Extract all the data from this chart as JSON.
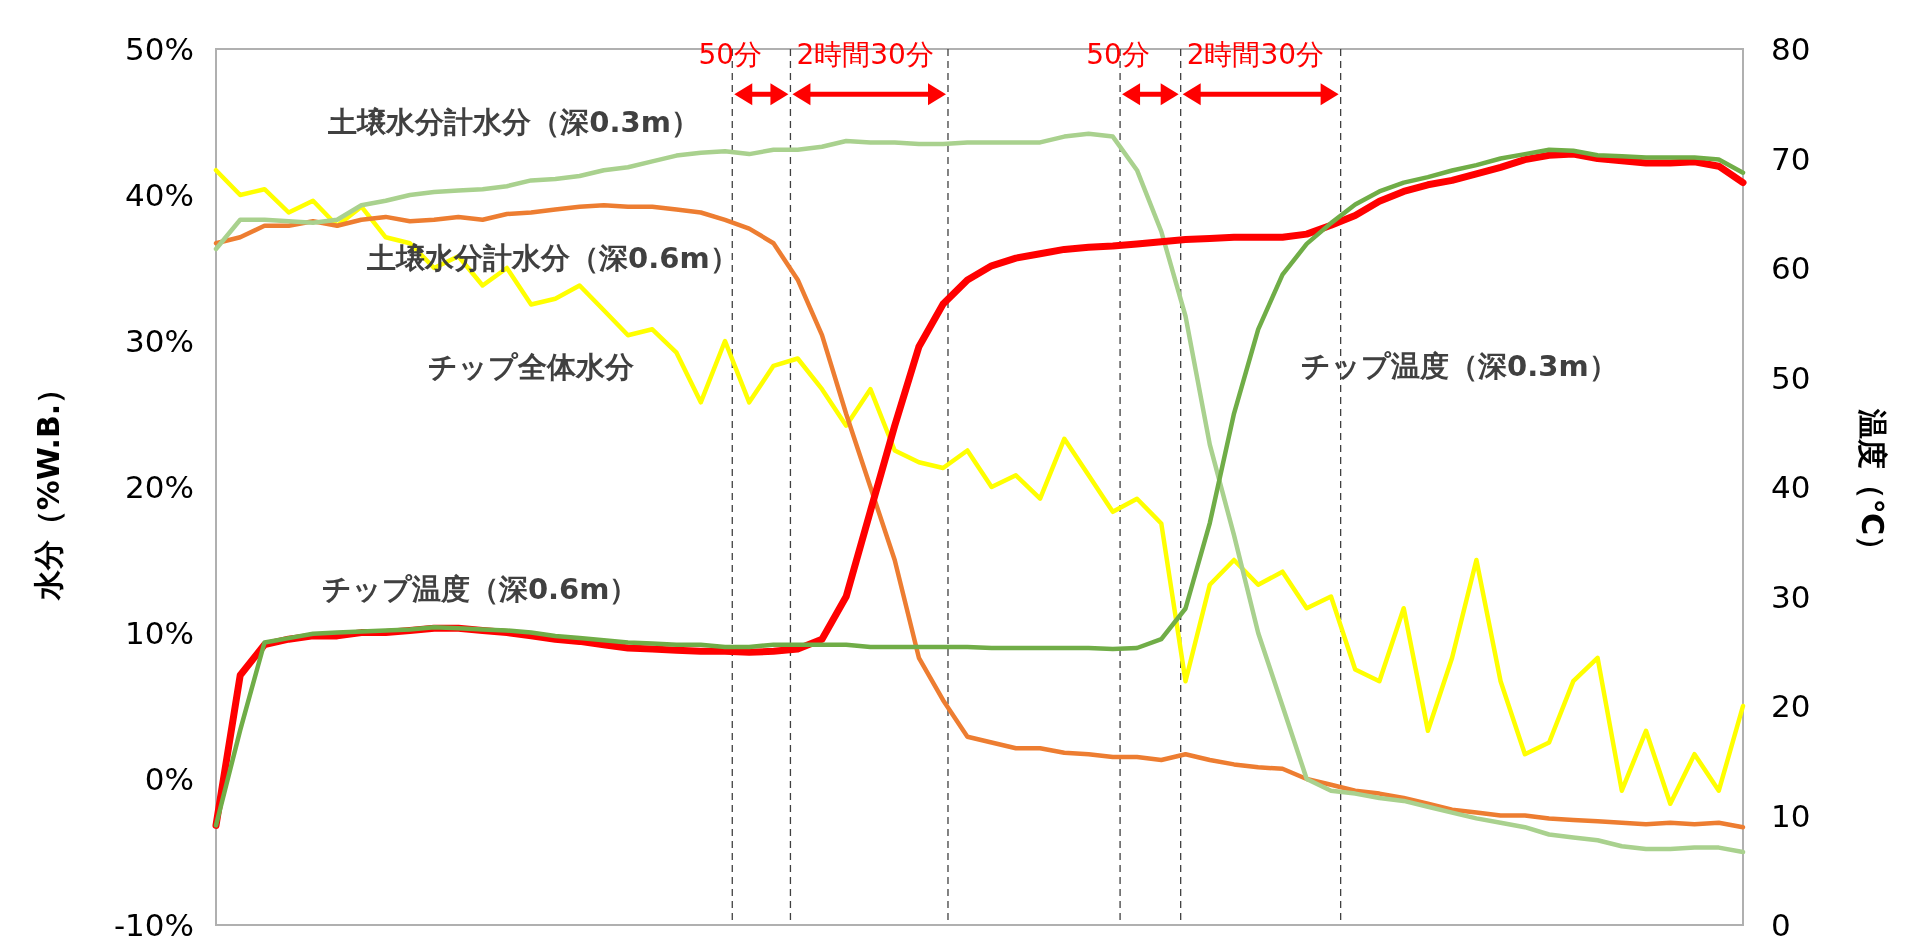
{
  "chart_data": {
    "type": "line",
    "ylabel": "水分（%W.B.）",
    "y2label": "温度（℃）",
    "categories": [
      null,
      null,
      null,
      null,
      null,
      null,
      null,
      null,
      null,
      null,
      null,
      null,
      null,
      null,
      null,
      null,
      null,
      null,
      null,
      null,
      null,
      null,
      null,
      null,
      null,
      null,
      null,
      null,
      null,
      null,
      null,
      null,
      null,
      null,
      null,
      null,
      null,
      null,
      null,
      null,
      null,
      null,
      null,
      null,
      null,
      null,
      null,
      null,
      null,
      null,
      null,
      null,
      null,
      null,
      null,
      null,
      null,
      null,
      null,
      null,
      null,
      null,
      null,
      null
    ],
    "ylim": [
      -10,
      50
    ],
    "yticks": [
      {
        "value": -10,
        "label": "-10%"
      },
      {
        "value": 0,
        "label": "0%"
      },
      {
        "value": 10,
        "label": "10%"
      },
      {
        "value": 20,
        "label": "20%"
      },
      {
        "value": 30,
        "label": "30%"
      },
      {
        "value": 40,
        "label": "40%"
      },
      {
        "value": 50,
        "label": "50%"
      }
    ],
    "y2lim": [
      0,
      80
    ],
    "y2ticks": [
      0,
      10,
      20,
      30,
      40,
      50,
      60,
      70,
      80
    ],
    "grid": false,
    "series": [
      {
        "name": "土壌水分計水分（深0.3m）",
        "color": "#a9d18e",
        "values": [
          36.3,
          38.3,
          38.3,
          38.2,
          38.1,
          38.3,
          39.3,
          39.6,
          40.0,
          40.2,
          40.3,
          40.4,
          40.6,
          41.0,
          41.1,
          41.3,
          41.7,
          41.9,
          42.3,
          42.7,
          42.9,
          43.0,
          42.8,
          43.1,
          43.1,
          43.3,
          43.7,
          43.6,
          43.6,
          43.5,
          43.5,
          43.6,
          43.6,
          43.6,
          43.6,
          44.0,
          44.2,
          44.0,
          41.7,
          37.5,
          31.7,
          22.9,
          16.7,
          10.0,
          5.0,
          0.0,
          -0.8,
          -1.0,
          -1.3,
          -1.5,
          -1.9,
          -2.3,
          -2.7,
          -3.0,
          -3.3,
          -3.8,
          -4.0,
          -4.2,
          -4.6,
          -4.8,
          -4.8,
          -4.7,
          -4.7,
          -5.0
        ]
      },
      {
        "name": "土壌水分計水分（深0.6m）",
        "color": "#ed7d31",
        "values": [
          36.7,
          37.1,
          37.9,
          37.9,
          38.2,
          37.9,
          38.3,
          38.5,
          38.2,
          38.3,
          38.5,
          38.3,
          38.7,
          38.8,
          39.0,
          39.2,
          39.3,
          39.2,
          39.2,
          39.0,
          38.8,
          38.3,
          37.7,
          36.7,
          34.2,
          30.4,
          25.0,
          20.0,
          15.0,
          8.3,
          5.4,
          2.9,
          2.5,
          2.1,
          2.1,
          1.8,
          1.7,
          1.5,
          1.5,
          1.3,
          1.7,
          1.3,
          1.0,
          0.8,
          0.7,
          0.0,
          -0.4,
          -0.8,
          -1.0,
          -1.3,
          -1.7,
          -2.1,
          -2.3,
          -2.5,
          -2.5,
          -2.7,
          -2.8,
          -2.9,
          -3.0,
          -3.1,
          -3.0,
          -3.1,
          -3.0,
          -3.3
        ]
      },
      {
        "name": "チップ全体水分",
        "color": "#ffff00",
        "values": [
          41.7,
          40.0,
          40.4,
          38.8,
          39.6,
          37.9,
          39.2,
          37.1,
          36.7,
          35.0,
          35.8,
          33.8,
          35.0,
          32.5,
          32.9,
          33.8,
          32.1,
          30.4,
          30.8,
          29.2,
          25.8,
          30.0,
          25.8,
          28.3,
          28.8,
          26.7,
          24.2,
          26.7,
          22.5,
          21.7,
          21.3,
          22.5,
          20.0,
          20.8,
          19.2,
          23.3,
          20.8,
          18.3,
          19.2,
          17.5,
          6.7,
          13.3,
          15.0,
          13.3,
          14.2,
          11.7,
          12.5,
          7.5,
          6.7,
          11.7,
          3.3,
          8.3,
          15.0,
          6.7,
          1.7,
          2.5,
          6.7,
          8.3,
          -0.8,
          3.3,
          -1.7,
          1.7,
          -0.8,
          5.0
        ]
      },
      {
        "name": "チップ温度（深0.6m）",
        "color": "#ff0000",
        "axis": "y2",
        "values": [
          9.1,
          22.8,
          25.6,
          26.1,
          26.4,
          26.4,
          26.7,
          26.7,
          26.9,
          27.1,
          27.1,
          26.9,
          26.7,
          26.4,
          26.1,
          25.9,
          25.6,
          25.3,
          25.2,
          25.1,
          25.0,
          25.0,
          24.9,
          25.0,
          25.2,
          26.1,
          30.0,
          37.8,
          45.6,
          52.8,
          56.7,
          58.9,
          60.2,
          60.9,
          61.3,
          61.7,
          61.9,
          62.0,
          62.2,
          62.4,
          62.6,
          62.7,
          62.8,
          62.8,
          62.8,
          63.1,
          63.9,
          64.8,
          66.1,
          67.0,
          67.6,
          68.0,
          68.6,
          69.2,
          69.9,
          70.3,
          70.4,
          70.0,
          69.8,
          69.6,
          69.6,
          69.7,
          69.3,
          67.8
        ]
      },
      {
        "name": "チップ温度（深0.3m）",
        "color": "#70ad47",
        "axis": "y2",
        "values": [
          9.1,
          17.8,
          25.8,
          26.2,
          26.6,
          26.7,
          26.8,
          26.9,
          27.0,
          27.2,
          27.1,
          27.0,
          26.9,
          26.7,
          26.4,
          26.2,
          26.0,
          25.8,
          25.7,
          25.6,
          25.6,
          25.4,
          25.4,
          25.6,
          25.6,
          25.6,
          25.6,
          25.4,
          25.4,
          25.4,
          25.4,
          25.4,
          25.3,
          25.3,
          25.3,
          25.3,
          25.3,
          25.2,
          25.3,
          26.1,
          28.9,
          36.7,
          46.7,
          54.4,
          59.4,
          62.2,
          64.1,
          65.8,
          67.0,
          67.8,
          68.3,
          68.9,
          69.4,
          70.0,
          70.4,
          70.8,
          70.7,
          70.3,
          70.2,
          70.1,
          70.1,
          70.1,
          69.9,
          68.7
        ]
      }
    ],
    "annotations": [
      "50分",
      "2時間30分",
      "50分",
      "2時間30分"
    ]
  }
}
